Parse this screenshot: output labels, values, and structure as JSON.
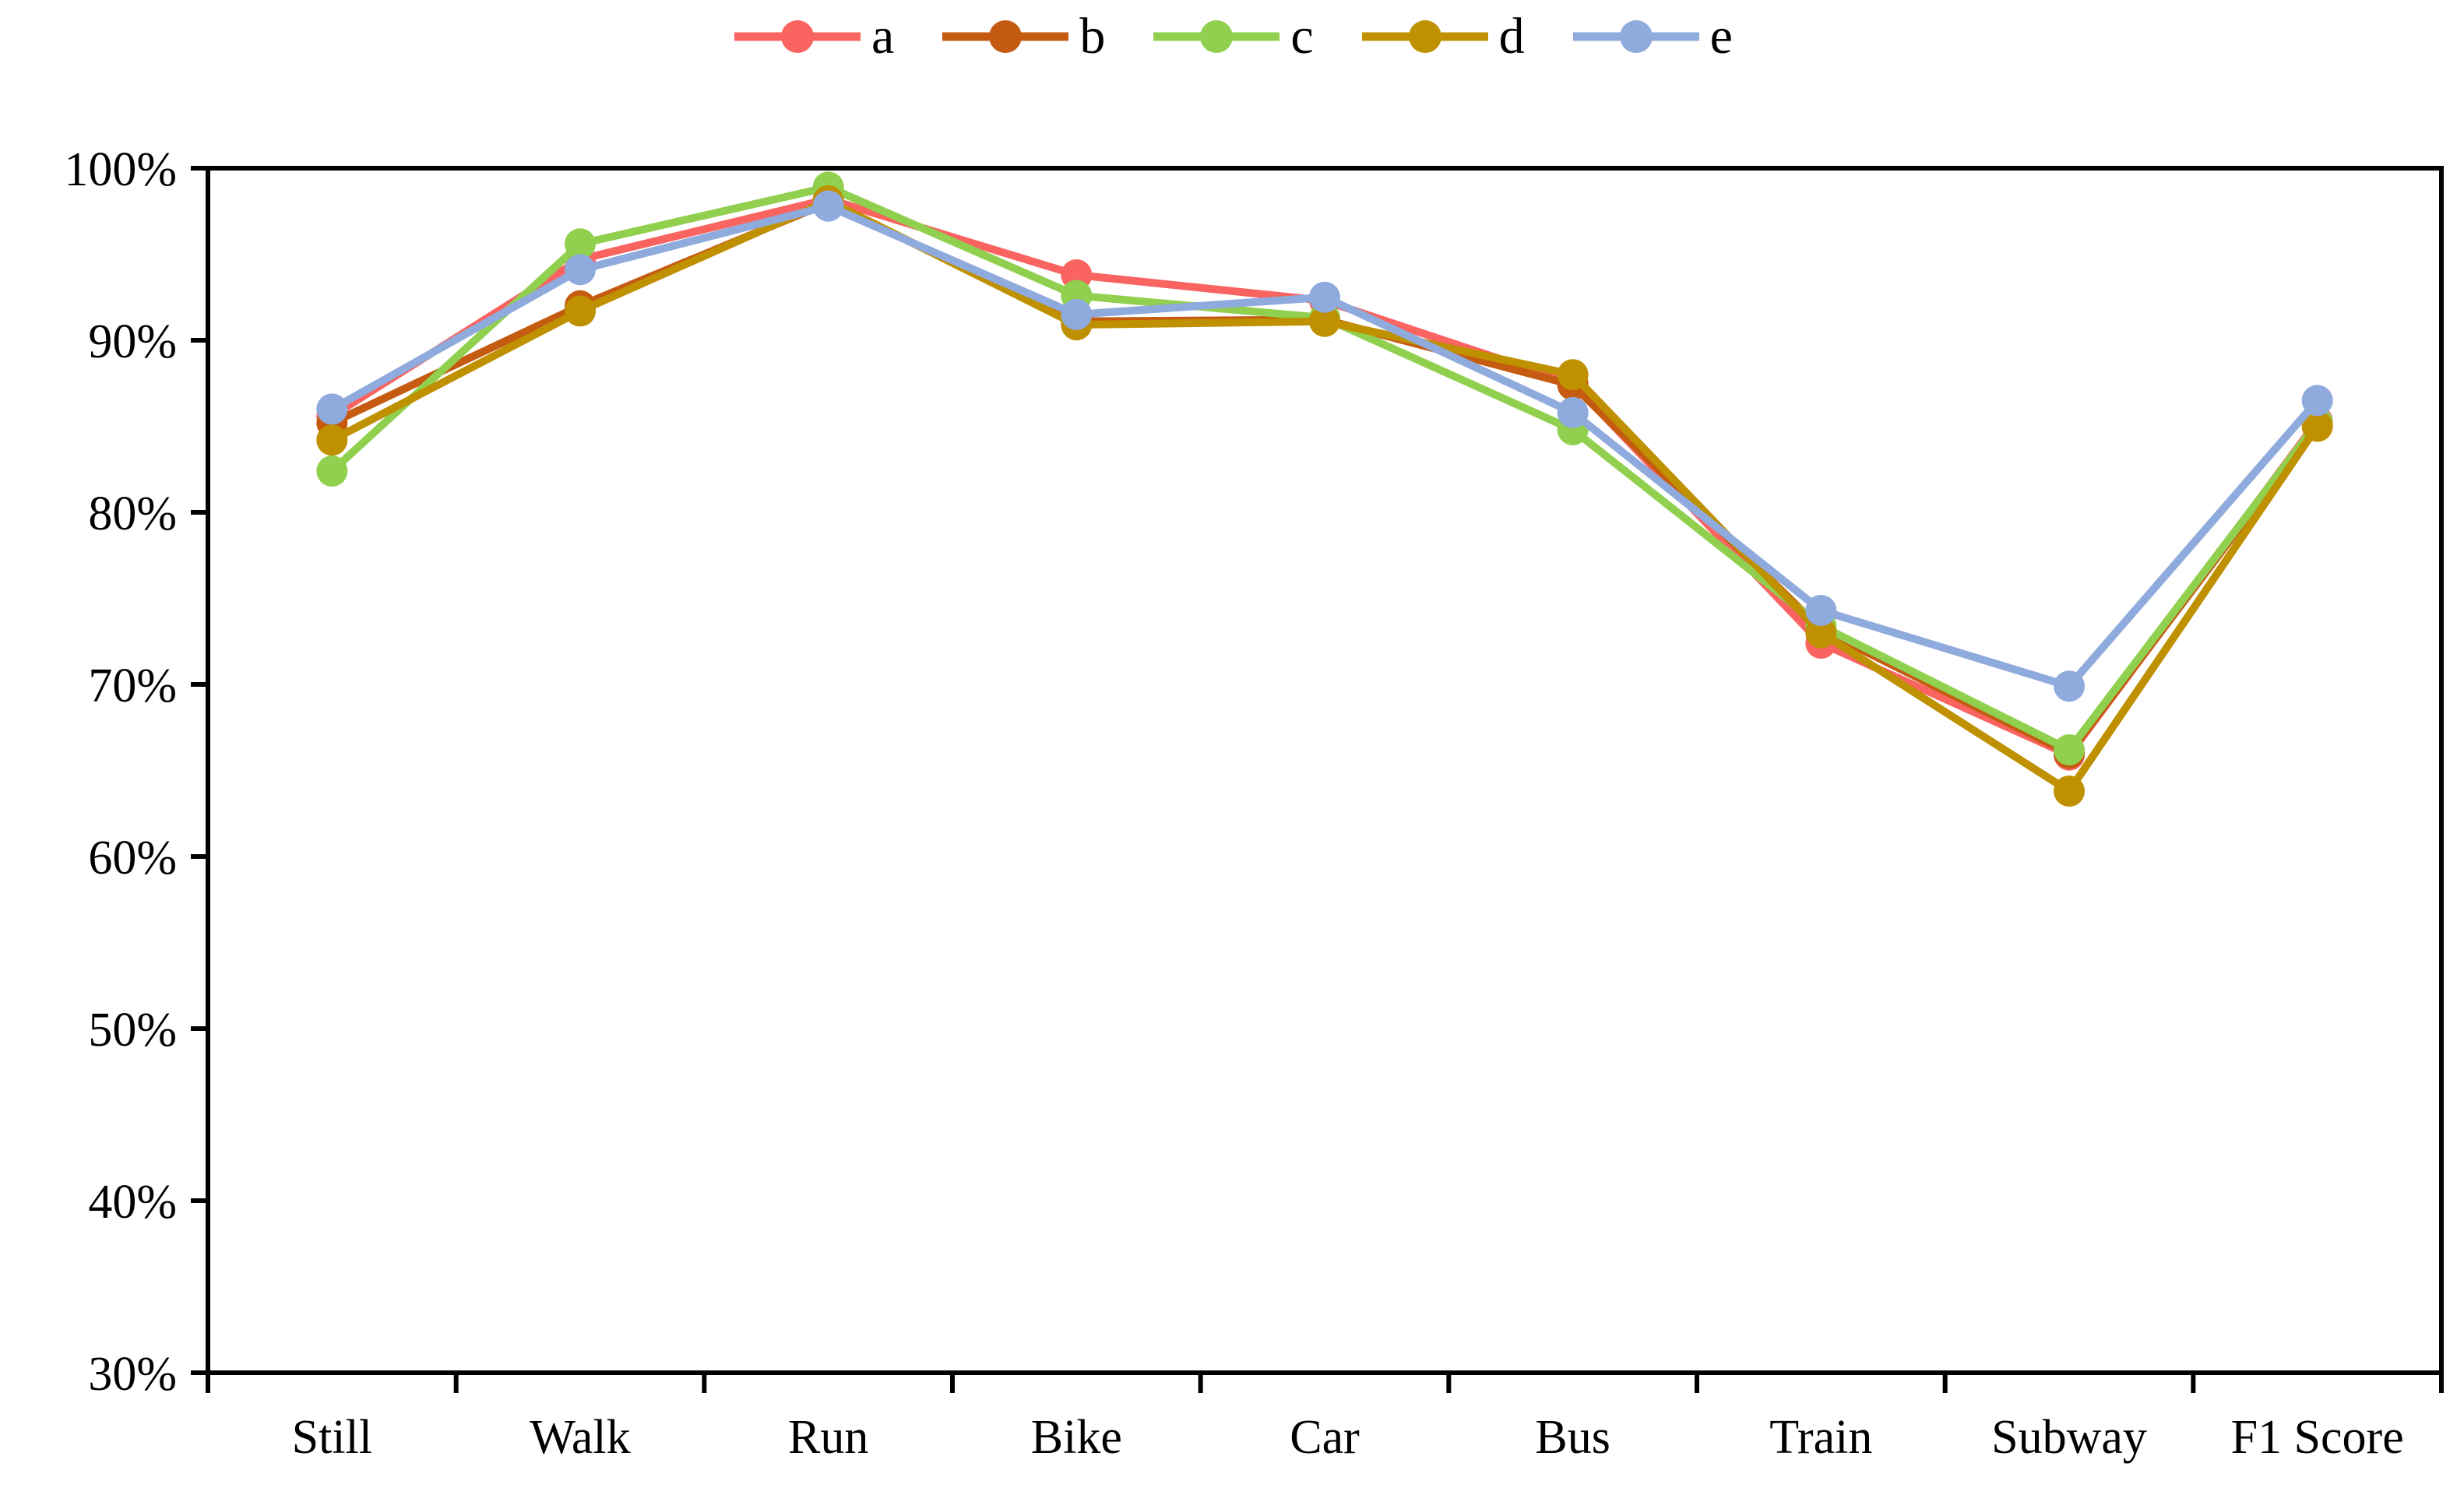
{
  "chart_data": {
    "type": "line",
    "title": "",
    "xlabel": "",
    "ylabel": "",
    "grid": false,
    "legend_position": "top",
    "categories": [
      "Still",
      "Walk",
      "Run",
      "Bike",
      "Car",
      "Bus",
      "Train",
      "Subway",
      "F1 Score"
    ],
    "y_axis": {
      "min": 30,
      "max": 100,
      "step": 10,
      "tick_labels": [
        "30%",
        "40%",
        "50%",
        "60%",
        "70%",
        "80%",
        "90%",
        "100%"
      ]
    },
    "series": [
      {
        "name": "a",
        "color": "#F96360",
        "values": [
          85.6,
          94.7,
          98.2,
          93.8,
          92.3,
          87.5,
          72.4,
          65.9,
          85.3
        ]
      },
      {
        "name": "b",
        "color": "#C55A11",
        "values": [
          85.2,
          92.0,
          98.0,
          91.1,
          91.2,
          87.4,
          73.2,
          66.0,
          85.1
        ]
      },
      {
        "name": "c",
        "color": "#90D04E",
        "values": [
          82.4,
          95.6,
          98.9,
          92.6,
          91.3,
          84.8,
          73.4,
          66.2,
          85.2
        ]
      },
      {
        "name": "d",
        "color": "#BF9000",
        "values": [
          84.2,
          91.7,
          98.1,
          90.9,
          91.1,
          88.0,
          73.0,
          63.8,
          85.0
        ]
      },
      {
        "name": "e",
        "color": "#8FAADC",
        "values": [
          86.0,
          94.1,
          97.8,
          91.5,
          92.5,
          85.8,
          74.3,
          69.9,
          86.5
        ]
      }
    ],
    "axis_color": "#000000",
    "background_color": "#FFFFFF"
  }
}
